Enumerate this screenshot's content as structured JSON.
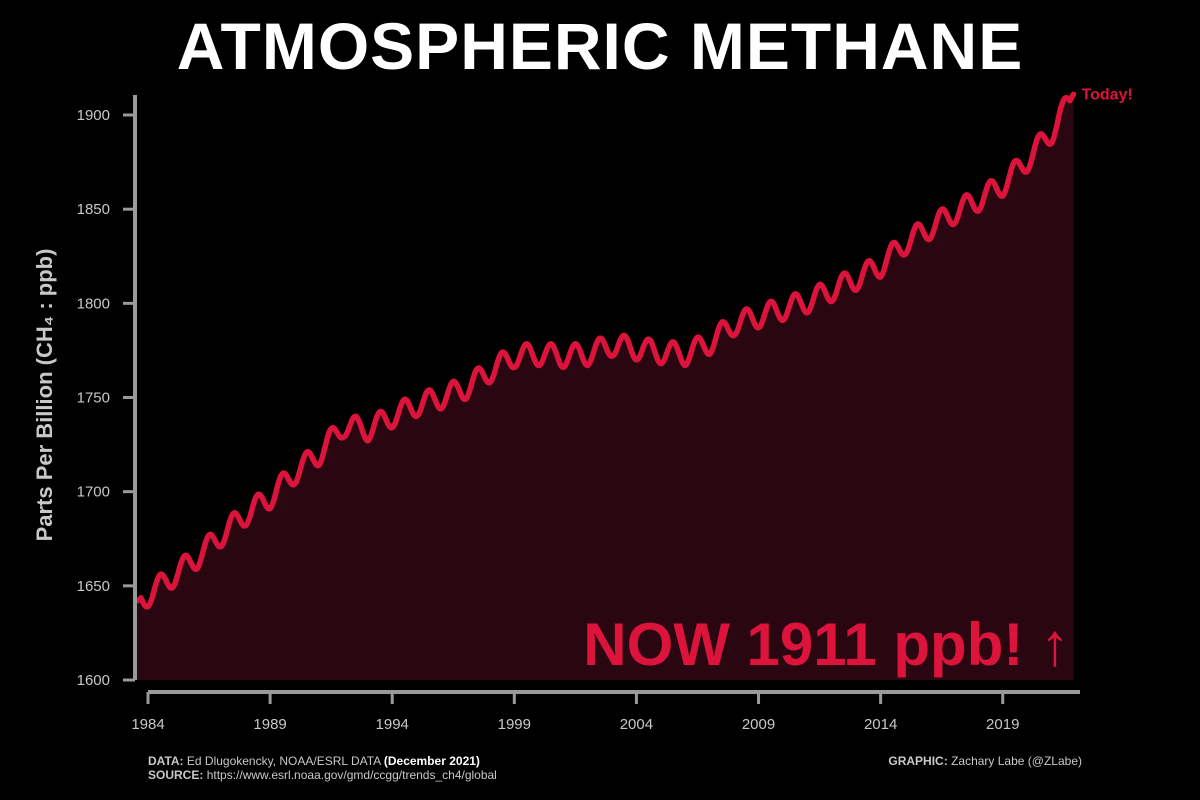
{
  "title": "ATMOSPHERIC METHANE",
  "chart_data": {
    "type": "line",
    "title": "ATMOSPHERIC METHANE",
    "ylabel": "Parts Per Billion (CH₄ : ppb)",
    "xlabel": "",
    "xlim": [
      1984,
      2022
    ],
    "ylim": [
      1600,
      1910
    ],
    "x_ticks": [
      1984,
      1989,
      1994,
      1999,
      2004,
      2009,
      2014,
      2019
    ],
    "y_ticks": [
      1600,
      1650,
      1700,
      1750,
      1800,
      1850,
      1900
    ],
    "grid": false,
    "series": [
      {
        "values_note": "",
        "x": [
          1983.5,
          1984,
          1985,
          1986,
          1987,
          1988,
          1989,
          1990,
          1991,
          1992,
          1993,
          1994,
          1995,
          1996,
          1997,
          1998,
          1999,
          2000,
          2001,
          2002,
          2003,
          2004,
          2005,
          2006,
          2007,
          2008,
          2009,
          2010,
          2011,
          2012,
          2013,
          2014,
          2015,
          2016,
          2017,
          2018,
          2019,
          2020,
          2021,
          2021.9
        ],
        "y": [
          1640,
          1645,
          1655,
          1665,
          1677,
          1688,
          1697,
          1710,
          1720,
          1735,
          1733,
          1740,
          1746,
          1750,
          1755,
          1764,
          1772,
          1773,
          1772,
          1773,
          1778,
          1776,
          1774,
          1773,
          1779,
          1789,
          1793,
          1797,
          1801,
          1807,
          1813,
          1820,
          1832,
          1840,
          1848,
          1855,
          1863,
          1876,
          1891,
          1911
        ]
      }
    ],
    "seasonal_amplitude_ppb": 6,
    "line_color": "#dc143c",
    "fill_color": "#2a0710",
    "annotation_end": "Today!",
    "annotation_main": "NOW 1911 ppb! ↑"
  },
  "footer": {
    "data_label": "DATA:",
    "data_text": "Ed Dlugokencky, NOAA/ESRL DATA",
    "data_date": "(December 2021)",
    "source_label": "SOURCE:",
    "source_text": "https://www.esrl.noaa.gov/gmd/ccgg/trends_ch4/global",
    "graphic_label": "GRAPHIC:",
    "graphic_text": "Zachary Labe (@ZLabe)"
  }
}
